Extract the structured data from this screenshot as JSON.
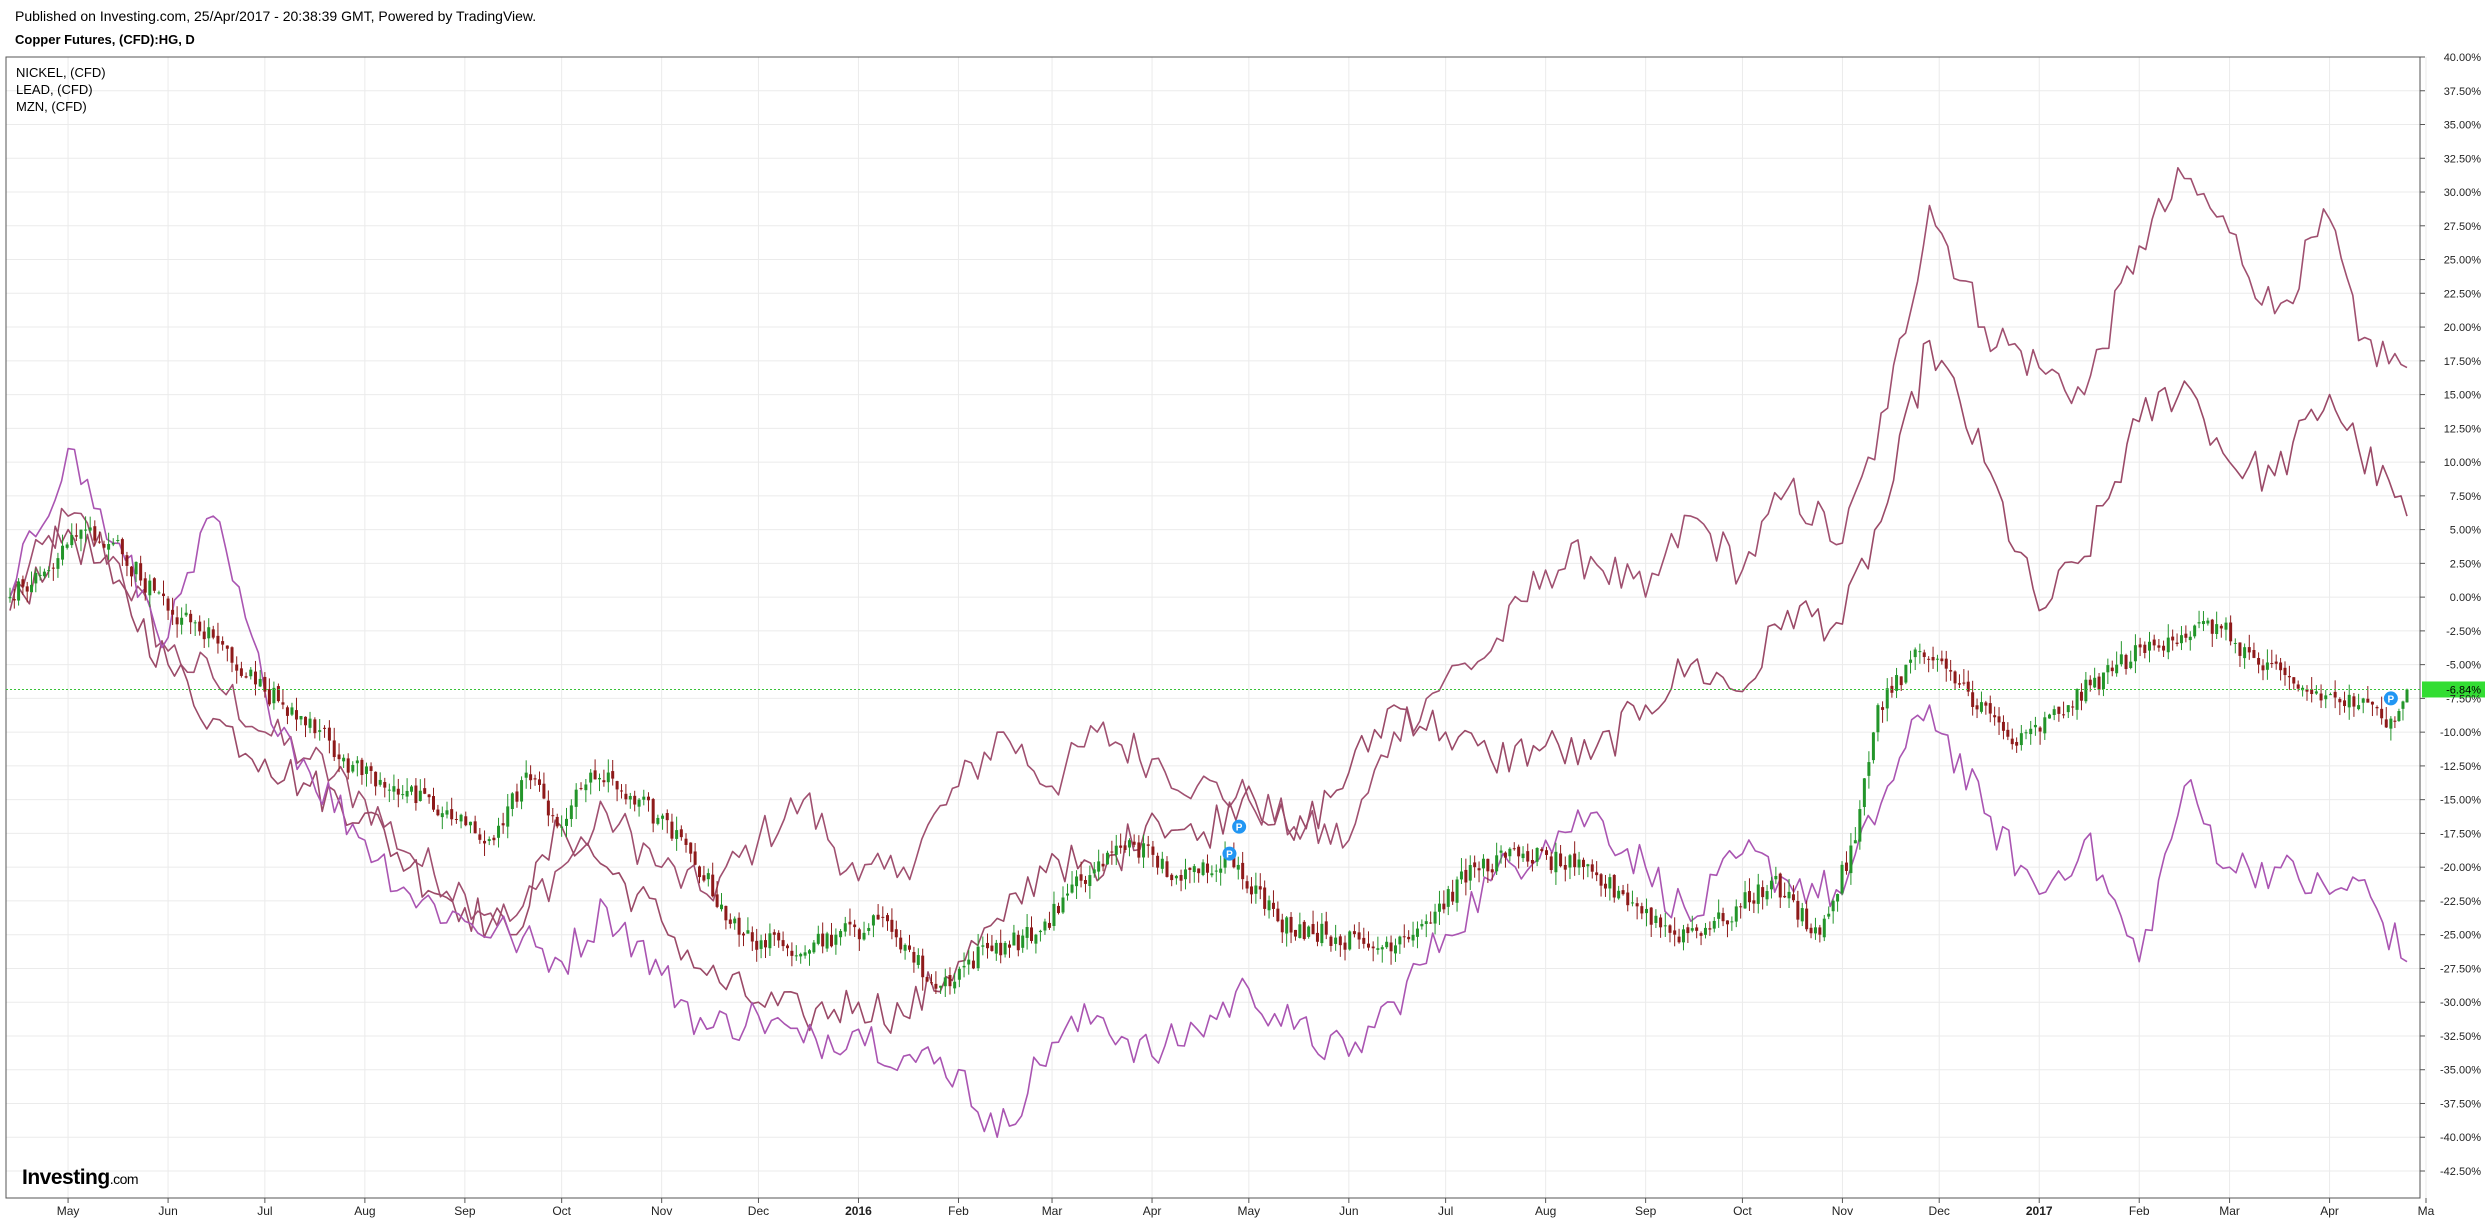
{
  "header": {
    "published": "Published on Investing.com, 25/Apr/2017 - 20:38:39 GMT, Powered by TradingView.",
    "symbol": "Copper Futures, (CFD):HG, D"
  },
  "legend": [
    "NICKEL,  (CFD)",
    "LEAD,  (CFD)",
    "MZN,  (CFD)"
  ],
  "logo": {
    "main": "Investing",
    "suffix": ".com"
  },
  "colors": {
    "nickel": "#a05070",
    "lead": "#9b4a68",
    "mzn": "#aa55b2",
    "up": "#23952a",
    "down": "#8e1a1a",
    "last_line": "#39c339",
    "last_badge": "#33dd33",
    "marker": "#2196f3"
  },
  "chart_data": {
    "type": "line",
    "title": "Copper Futures, (CFD):HG, D",
    "y_unit": "%",
    "ylim": [
      -44.5,
      40
    ],
    "y_ticks": [
      "40.00%",
      "37.50%",
      "35.00%",
      "32.50%",
      "30.00%",
      "27.50%",
      "25.00%",
      "22.50%",
      "20.00%",
      "17.50%",
      "15.00%",
      "12.50%",
      "10.00%",
      "7.50%",
      "5.00%",
      "2.50%",
      "0.00%",
      "-2.50%",
      "-5.00%",
      "-7.50%",
      "-10.00%",
      "-12.50%",
      "-15.00%",
      "-17.50%",
      "-20.00%",
      "-22.50%",
      "-25.00%",
      "-27.50%",
      "-30.00%",
      "-32.50%",
      "-35.00%",
      "-37.50%",
      "-40.00%",
      "-42.50%"
    ],
    "x_labels": [
      "May",
      "Jun",
      "Jul",
      "Aug",
      "Sep",
      "Oct",
      "Nov",
      "Dec",
      "2016",
      "Feb",
      "Mar",
      "Apr",
      "May",
      "Jun",
      "Jul",
      "Aug",
      "Sep",
      "Oct",
      "Nov",
      "Dec",
      "2017",
      "Feb",
      "Mar",
      "Apr",
      "Ma"
    ],
    "x_bold": [
      "2016",
      "2017"
    ],
    "x_range": [
      "2015-04-13",
      "2017-04-25"
    ],
    "last_value": {
      "date": "2017-04-25",
      "value": -6.84,
      "label": "-6.84%"
    },
    "series": [
      {
        "name": "NICKEL,  (CFD)",
        "style": "line",
        "color_key": "nickel",
        "points": [
          [
            "2015-04-13",
            0
          ],
          [
            "2015-05-01",
            6
          ],
          [
            "2015-05-15",
            3
          ],
          [
            "2015-06-01",
            -4
          ],
          [
            "2015-06-15",
            -6
          ],
          [
            "2015-07-01",
            -10
          ],
          [
            "2015-07-15",
            -12
          ],
          [
            "2015-08-01",
            -15
          ],
          [
            "2015-08-15",
            -19
          ],
          [
            "2015-09-01",
            -22
          ],
          [
            "2015-09-15",
            -24
          ],
          [
            "2015-10-01",
            -20
          ],
          [
            "2015-10-15",
            -16
          ],
          [
            "2015-11-01",
            -20
          ],
          [
            "2015-11-15",
            -22
          ],
          [
            "2015-12-01",
            -18
          ],
          [
            "2015-12-15",
            -15
          ],
          [
            "2016-01-01",
            -21
          ],
          [
            "2016-01-15",
            -20
          ],
          [
            "2016-02-01",
            -14
          ],
          [
            "2016-02-15",
            -10
          ],
          [
            "2016-03-01",
            -14
          ],
          [
            "2016-03-15",
            -10
          ],
          [
            "2016-04-01",
            -12
          ],
          [
            "2016-04-15",
            -14
          ],
          [
            "2016-05-01",
            -15
          ],
          [
            "2016-05-15",
            -17
          ],
          [
            "2016-06-01",
            -18
          ],
          [
            "2016-06-15",
            -10
          ],
          [
            "2016-07-01",
            -6
          ],
          [
            "2016-07-15",
            -4
          ],
          [
            "2016-08-01",
            2
          ],
          [
            "2016-08-15",
            3
          ],
          [
            "2016-09-01",
            0
          ],
          [
            "2016-09-15",
            6
          ],
          [
            "2016-10-01",
            2
          ],
          [
            "2016-10-15",
            8
          ],
          [
            "2016-11-01",
            4
          ],
          [
            "2016-11-15",
            14
          ],
          [
            "2016-11-28",
            29
          ],
          [
            "2016-12-15",
            20
          ],
          [
            "2017-01-01",
            17
          ],
          [
            "2017-01-15",
            15
          ],
          [
            "2017-02-01",
            26
          ],
          [
            "2017-02-15",
            31
          ],
          [
            "2017-03-01",
            27
          ],
          [
            "2017-03-15",
            21
          ],
          [
            "2017-04-01",
            28
          ],
          [
            "2017-04-10",
            19
          ],
          [
            "2017-04-25",
            17
          ]
        ]
      },
      {
        "name": "LEAD,  (CFD)",
        "style": "line",
        "color_key": "lead",
        "points": [
          [
            "2015-04-13",
            -1
          ],
          [
            "2015-05-01",
            5
          ],
          [
            "2015-05-15",
            1
          ],
          [
            "2015-06-01",
            -5
          ],
          [
            "2015-06-15",
            -9
          ],
          [
            "2015-07-01",
            -12
          ],
          [
            "2015-07-15",
            -14
          ],
          [
            "2015-08-01",
            -16
          ],
          [
            "2015-08-15",
            -20
          ],
          [
            "2015-09-01",
            -23
          ],
          [
            "2015-09-15",
            -25
          ],
          [
            "2015-10-01",
            -17
          ],
          [
            "2015-10-15",
            -20
          ],
          [
            "2015-11-01",
            -24
          ],
          [
            "2015-11-15",
            -28
          ],
          [
            "2015-12-01",
            -30
          ],
          [
            "2015-12-15",
            -31
          ],
          [
            "2016-01-01",
            -30
          ],
          [
            "2016-01-15",
            -31
          ],
          [
            "2016-02-01",
            -27
          ],
          [
            "2016-02-15",
            -24
          ],
          [
            "2016-03-01",
            -19
          ],
          [
            "2016-03-15",
            -21
          ],
          [
            "2016-04-01",
            -16
          ],
          [
            "2016-04-15",
            -18
          ],
          [
            "2016-05-01",
            -14
          ],
          [
            "2016-05-15",
            -18
          ],
          [
            "2016-06-01",
            -13
          ],
          [
            "2016-06-15",
            -8
          ],
          [
            "2016-07-01",
            -10
          ],
          [
            "2016-07-15",
            -12
          ],
          [
            "2016-08-01",
            -11
          ],
          [
            "2016-08-15",
            -12
          ],
          [
            "2016-09-01",
            -8
          ],
          [
            "2016-09-15",
            -5
          ],
          [
            "2016-10-01",
            -7
          ],
          [
            "2016-10-15",
            -1
          ],
          [
            "2016-11-01",
            -2
          ],
          [
            "2016-11-15",
            7
          ],
          [
            "2016-11-28",
            19
          ],
          [
            "2016-12-15",
            10
          ],
          [
            "2017-01-01",
            -1
          ],
          [
            "2017-01-15",
            3
          ],
          [
            "2017-02-01",
            13
          ],
          [
            "2017-02-15",
            16
          ],
          [
            "2017-03-01",
            10
          ],
          [
            "2017-03-15",
            9
          ],
          [
            "2017-04-01",
            15
          ],
          [
            "2017-04-10",
            11
          ],
          [
            "2017-04-25",
            6
          ]
        ]
      },
      {
        "name": "MZN,  (CFD)",
        "style": "line",
        "color_key": "mzn",
        "points": [
          [
            "2015-04-13",
            0
          ],
          [
            "2015-05-01",
            11
          ],
          [
            "2015-05-15",
            4
          ],
          [
            "2015-06-01",
            -3
          ],
          [
            "2015-06-15",
            6
          ],
          [
            "2015-07-01",
            -7
          ],
          [
            "2015-07-15",
            -13
          ],
          [
            "2015-08-01",
            -18
          ],
          [
            "2015-08-15",
            -22
          ],
          [
            "2015-09-01",
            -24
          ],
          [
            "2015-09-15",
            -25
          ],
          [
            "2015-10-01",
            -27
          ],
          [
            "2015-10-15",
            -23
          ],
          [
            "2015-11-01",
            -28
          ],
          [
            "2015-11-15",
            -32
          ],
          [
            "2015-12-01",
            -31
          ],
          [
            "2015-12-15",
            -33
          ],
          [
            "2016-01-01",
            -32
          ],
          [
            "2016-01-15",
            -34
          ],
          [
            "2016-02-01",
            -35
          ],
          [
            "2016-02-13",
            -40
          ],
          [
            "2016-03-01",
            -33
          ],
          [
            "2016-03-15",
            -31
          ],
          [
            "2016-04-01",
            -34
          ],
          [
            "2016-04-15",
            -32
          ],
          [
            "2016-05-01",
            -29
          ],
          [
            "2016-05-15",
            -32
          ],
          [
            "2016-06-01",
            -34
          ],
          [
            "2016-06-15",
            -30
          ],
          [
            "2016-07-01",
            -25
          ],
          [
            "2016-07-15",
            -21
          ],
          [
            "2016-08-01",
            -18
          ],
          [
            "2016-08-15",
            -16
          ],
          [
            "2016-09-01",
            -20
          ],
          [
            "2016-09-15",
            -24
          ],
          [
            "2016-10-01",
            -19
          ],
          [
            "2016-10-15",
            -21
          ],
          [
            "2016-11-01",
            -22
          ],
          [
            "2016-11-15",
            -14
          ],
          [
            "2016-11-28",
            -8
          ],
          [
            "2016-12-15",
            -16
          ],
          [
            "2017-01-01",
            -22
          ],
          [
            "2017-01-15",
            -18
          ],
          [
            "2017-02-01",
            -27
          ],
          [
            "2017-02-15",
            -14
          ],
          [
            "2017-03-01",
            -20
          ],
          [
            "2017-03-15",
            -20
          ],
          [
            "2017-04-01",
            -22
          ],
          [
            "2017-04-10",
            -21
          ],
          [
            "2017-04-25",
            -27
          ]
        ]
      },
      {
        "name": "Copper Futures, (CFD):HG, D",
        "style": "candlestick",
        "points": [
          [
            "2015-04-13",
            0
          ],
          [
            "2015-04-25",
            2
          ],
          [
            "2015-05-05",
            5
          ],
          [
            "2015-05-15",
            4
          ],
          [
            "2015-06-01",
            -1
          ],
          [
            "2015-06-15",
            -3
          ],
          [
            "2015-07-01",
            -7
          ],
          [
            "2015-07-15",
            -9
          ],
          [
            "2015-07-24",
            -12
          ],
          [
            "2015-08-10",
            -14
          ],
          [
            "2015-08-25",
            -16
          ],
          [
            "2015-09-10",
            -18
          ],
          [
            "2015-09-20",
            -13
          ],
          [
            "2015-10-01",
            -17
          ],
          [
            "2015-10-10",
            -13
          ],
          [
            "2015-10-25",
            -15
          ],
          [
            "2015-11-10",
            -19
          ],
          [
            "2015-11-25",
            -25
          ],
          [
            "2015-12-10",
            -26
          ],
          [
            "2015-12-25",
            -25
          ],
          [
            "2016-01-10",
            -24
          ],
          [
            "2016-01-25",
            -29
          ],
          [
            "2016-02-10",
            -26
          ],
          [
            "2016-02-25",
            -25
          ],
          [
            "2016-03-10",
            -21
          ],
          [
            "2016-03-25",
            -18
          ],
          [
            "2016-04-10",
            -21
          ],
          [
            "2016-04-25",
            -19
          ],
          [
            "2016-05-10",
            -24
          ],
          [
            "2016-05-25",
            -25
          ],
          [
            "2016-06-10",
            -26
          ],
          [
            "2016-06-25",
            -24
          ],
          [
            "2016-07-10",
            -20
          ],
          [
            "2016-07-25",
            -19
          ],
          [
            "2016-08-10",
            -20
          ],
          [
            "2016-08-25",
            -22
          ],
          [
            "2016-09-10",
            -25
          ],
          [
            "2016-09-25",
            -24
          ],
          [
            "2016-10-10",
            -21
          ],
          [
            "2016-10-25",
            -25
          ],
          [
            "2016-11-05",
            -18
          ],
          [
            "2016-11-12",
            -8
          ],
          [
            "2016-11-25",
            -4
          ],
          [
            "2016-12-10",
            -7
          ],
          [
            "2016-12-25",
            -11
          ],
          [
            "2017-01-10",
            -8
          ],
          [
            "2017-01-25",
            -5
          ],
          [
            "2017-02-10",
            -3
          ],
          [
            "2017-02-25",
            -2
          ],
          [
            "2017-03-10",
            -5
          ],
          [
            "2017-03-25",
            -7
          ],
          [
            "2017-04-10",
            -8
          ],
          [
            "2017-04-20",
            -9
          ],
          [
            "2017-04-25",
            -6.84
          ]
        ]
      }
    ],
    "markers": [
      {
        "date": "2016-04-25",
        "value": -19,
        "label": "P"
      },
      {
        "date": "2016-04-28",
        "value": -17,
        "label": "P"
      },
      {
        "date": "2017-04-20",
        "value": -7.5,
        "label": "P"
      }
    ]
  }
}
